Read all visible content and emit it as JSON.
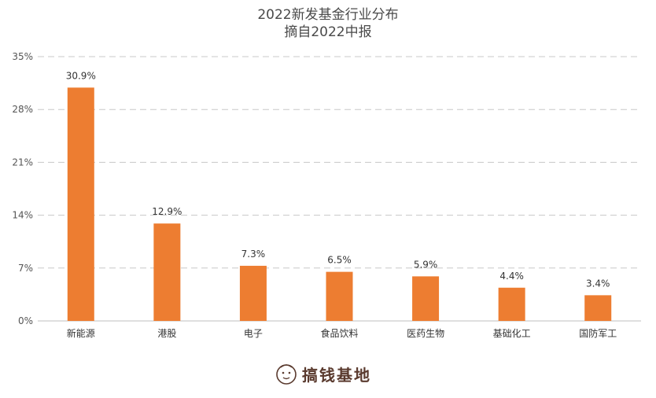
{
  "chart_data": {
    "type": "bar",
    "title": "2022新发基金行业分布",
    "subtitle": "摘自2022中报",
    "categories": [
      "新能源",
      "港股",
      "电子",
      "食品饮料",
      "医药生物",
      "基础化工",
      "国防军工"
    ],
    "values": [
      30.9,
      12.9,
      7.3,
      6.5,
      5.9,
      4.4,
      3.4
    ],
    "data_labels": [
      "30.9%",
      "12.9%",
      "7.3%",
      "6.5%",
      "5.9%",
      "4.4%",
      "3.4%"
    ],
    "ylim": [
      0,
      35
    ],
    "yticks": [
      0,
      7,
      14,
      21,
      28,
      35
    ],
    "ytick_labels": [
      "0%",
      "7%",
      "14%",
      "21%",
      "28%",
      "35%"
    ],
    "grid": true,
    "bar_color": "#ED7D31"
  },
  "watermark": {
    "text": "搞钱基地",
    "icon": "face-logo-icon",
    "color": "#5a3a2e"
  }
}
